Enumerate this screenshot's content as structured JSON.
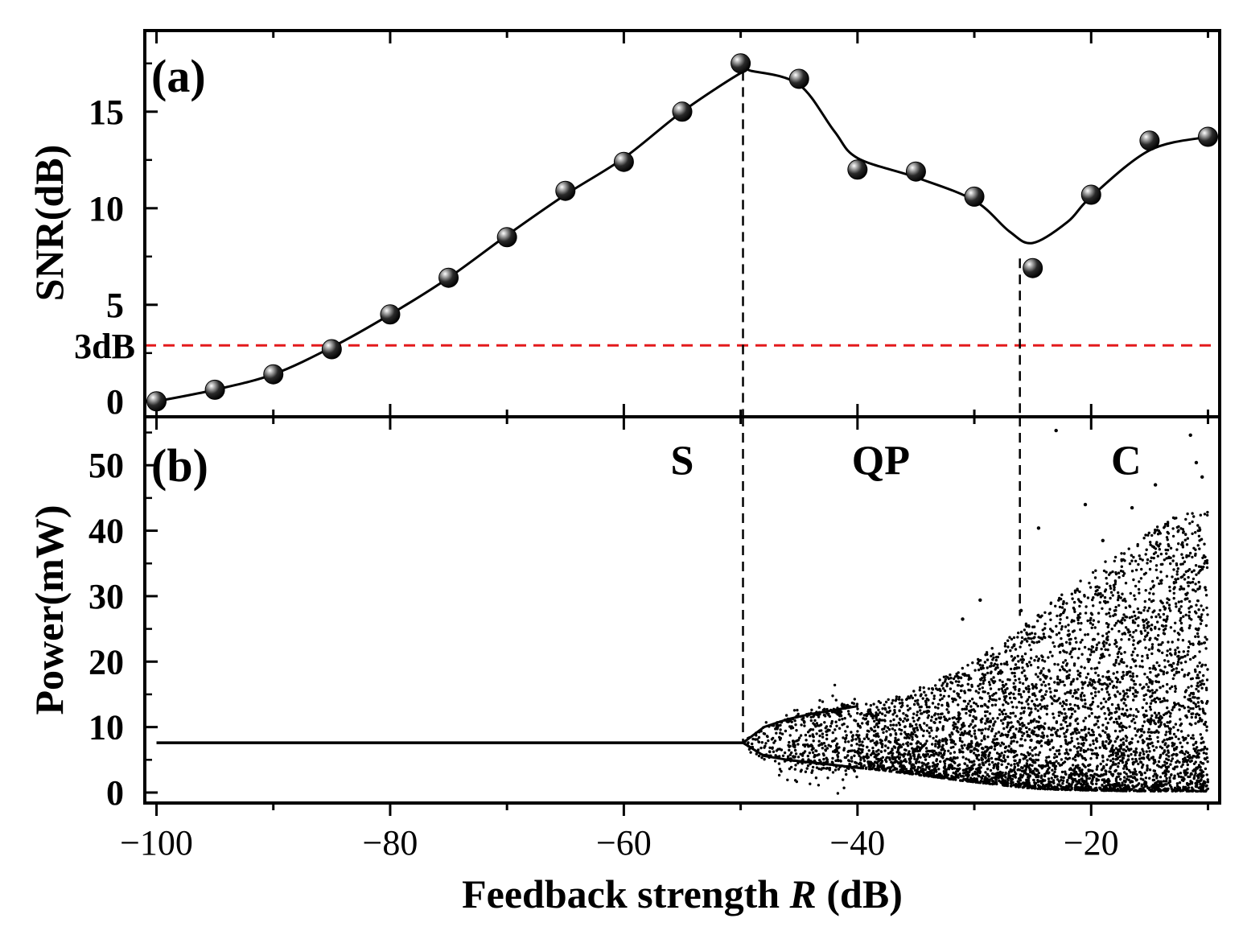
{
  "chart_data": [
    {
      "panel_label": "(a)",
      "type": "scatter",
      "ylabel": "SNR(dB)",
      "xlim": [
        -101,
        -9
      ],
      "ylim": [
        -0.8,
        19.2
      ],
      "yticks": [
        0,
        5,
        10,
        15
      ],
      "ytick_labels": [
        "0",
        "5",
        "10",
        "15"
      ],
      "threshold": {
        "value": 2.9,
        "label": "3dB",
        "color": "#e31a1c"
      },
      "series": [
        {
          "name": "SNR measurements",
          "x": [
            -100,
            -95,
            -90,
            -85,
            -80,
            -75,
            -70,
            -65,
            -60,
            -55,
            -50,
            -45,
            -40,
            -35,
            -30,
            -25,
            -20,
            -15,
            -10
          ],
          "y": [
            0.0,
            0.6,
            1.4,
            2.7,
            4.5,
            6.4,
            8.5,
            10.9,
            12.4,
            15.0,
            17.5,
            16.7,
            12.0,
            11.9,
            10.6,
            6.9,
            10.7,
            13.5,
            13.7
          ]
        },
        {
          "name": "Fitted curve",
          "x": [
            -100,
            -95,
            -90,
            -85,
            -80,
            -75,
            -70,
            -65,
            -60,
            -55,
            -50,
            -49,
            -45,
            -42,
            -40,
            -35,
            -30,
            -27,
            -25,
            -22,
            -20,
            -15,
            -10
          ],
          "y": [
            0.0,
            0.6,
            1.4,
            2.8,
            4.5,
            6.4,
            8.6,
            10.7,
            12.6,
            15.0,
            17.0,
            17.1,
            16.4,
            14.0,
            12.6,
            11.6,
            10.4,
            8.8,
            8.2,
            9.3,
            10.6,
            13.0,
            13.7
          ]
        }
      ],
      "vlines_x": [
        -49.8,
        -26.1
      ]
    },
    {
      "panel_label": "(b)",
      "type": "scatter",
      "ylabel": "Power(mW)",
      "xlabel_prefix": "Feedback strength ",
      "xlabel_var": "R",
      "xlabel_suffix": " (dB)",
      "xlim": [
        -101,
        -9
      ],
      "ylim": [
        -1.6,
        57.4
      ],
      "xticks": [
        -100,
        -80,
        -60,
        -40,
        -20
      ],
      "xtick_labels": [
        "−100",
        "−80",
        "−60",
        "−40",
        "−20"
      ],
      "yticks": [
        0,
        10,
        20,
        30,
        40,
        50
      ],
      "ytick_labels": [
        "0",
        "10",
        "20",
        "30",
        "40",
        "50"
      ],
      "stable_power": 7.6,
      "bifurcation_start_x": -49.8,
      "regions": [
        {
          "label": "S",
          "x": -55
        },
        {
          "label": "QP",
          "x": -38
        },
        {
          "label": "C",
          "x": -17
        }
      ],
      "vlines_x": [
        -49.8,
        -26.1
      ],
      "envelope": {
        "x": [
          -49.8,
          -48,
          -46,
          -44,
          -42,
          -40,
          -37,
          -34,
          -31,
          -28,
          -25,
          -22,
          -19,
          -16,
          -13,
          -10
        ],
        "y_max": [
          7.6,
          10,
          11.2,
          12,
          12.6,
          13.2,
          14.5,
          16.5,
          19,
          23,
          27,
          31,
          35,
          39,
          42,
          44
        ],
        "y_min": [
          7.6,
          5.6,
          5.0,
          4.6,
          4.2,
          3.8,
          3.2,
          2.5,
          1.8,
          1.2,
          0.6,
          0.4,
          0.3,
          0.2,
          0.2,
          0.2
        ]
      },
      "outliers": [
        {
          "x": -23.0,
          "y": 55.3
        },
        {
          "x": -11.5,
          "y": 54.6
        },
        {
          "x": -11.0,
          "y": 50.4
        },
        {
          "x": -10.5,
          "y": 48.2
        },
        {
          "x": -14.5,
          "y": 47.0
        },
        {
          "x": -20.5,
          "y": 44.0
        },
        {
          "x": -16.5,
          "y": 43.5
        },
        {
          "x": -24.5,
          "y": 40.4
        },
        {
          "x": -19.0,
          "y": 38.5
        },
        {
          "x": -29.5,
          "y": 29.4
        },
        {
          "x": -26.0,
          "y": 27.8
        },
        {
          "x": -31.0,
          "y": 26.5
        }
      ]
    }
  ]
}
